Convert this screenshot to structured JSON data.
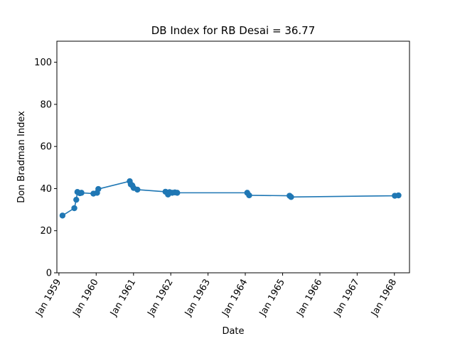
{
  "chart_data": {
    "type": "line",
    "title": "DB Index for RB Desai = 36.77",
    "xlabel": "Date",
    "ylabel": "Don Bradman Index",
    "ylim": [
      0,
      110
    ],
    "yticks": [
      0,
      20,
      40,
      60,
      80,
      100
    ],
    "xlim": [
      "1958-12-12",
      "1968-05-28"
    ],
    "xticks": [
      {
        "date": "1959-01-01",
        "label": "Jan 1959"
      },
      {
        "date": "1960-01-01",
        "label": "Jan 1960"
      },
      {
        "date": "1961-01-01",
        "label": "Jan 1961"
      },
      {
        "date": "1962-01-01",
        "label": "Jan 1962"
      },
      {
        "date": "1963-01-01",
        "label": "Jan 1963"
      },
      {
        "date": "1964-01-01",
        "label": "Jan 1964"
      },
      {
        "date": "1965-01-01",
        "label": "Jan 1965"
      },
      {
        "date": "1966-01-01",
        "label": "Jan 1966"
      },
      {
        "date": "1967-01-01",
        "label": "Jan 1967"
      },
      {
        "date": "1968-01-01",
        "label": "Jan 1968"
      }
    ],
    "grid": false,
    "color": "#1f77b4",
    "series": [
      {
        "points": [
          {
            "x": "1959-02-05",
            "y": 27.2
          },
          {
            "x": "1959-06-01",
            "y": 30.7
          },
          {
            "x": "1959-06-20",
            "y": 34.7
          },
          {
            "x": "1959-07-01",
            "y": 38.4
          },
          {
            "x": "1959-07-25",
            "y": 37.8
          },
          {
            "x": "1959-08-10",
            "y": 38.0
          },
          {
            "x": "1959-12-05",
            "y": 37.6
          },
          {
            "x": "1960-01-10",
            "y": 38.0
          },
          {
            "x": "1960-01-22",
            "y": 39.8
          },
          {
            "x": "1960-11-25",
            "y": 43.5
          },
          {
            "x": "1960-12-05",
            "y": 42.0
          },
          {
            "x": "1960-12-20",
            "y": 41.5
          },
          {
            "x": "1961-01-02",
            "y": 40.3
          },
          {
            "x": "1961-02-08",
            "y": 39.5
          },
          {
            "x": "1961-11-10",
            "y": 38.5
          },
          {
            "x": "1961-12-05",
            "y": 37.2
          },
          {
            "x": "1961-12-20",
            "y": 38.3
          },
          {
            "x": "1962-01-15",
            "y": 38.0
          },
          {
            "x": "1962-02-10",
            "y": 38.2
          },
          {
            "x": "1962-03-05",
            "y": 38.0
          },
          {
            "x": "1964-01-20",
            "y": 38.0
          },
          {
            "x": "1964-02-08",
            "y": 36.8
          },
          {
            "x": "1965-03-10",
            "y": 36.6
          },
          {
            "x": "1965-03-25",
            "y": 36.0
          },
          {
            "x": "1968-01-05",
            "y": 36.6
          },
          {
            "x": "1968-02-10",
            "y": 36.77
          }
        ]
      }
    ]
  }
}
